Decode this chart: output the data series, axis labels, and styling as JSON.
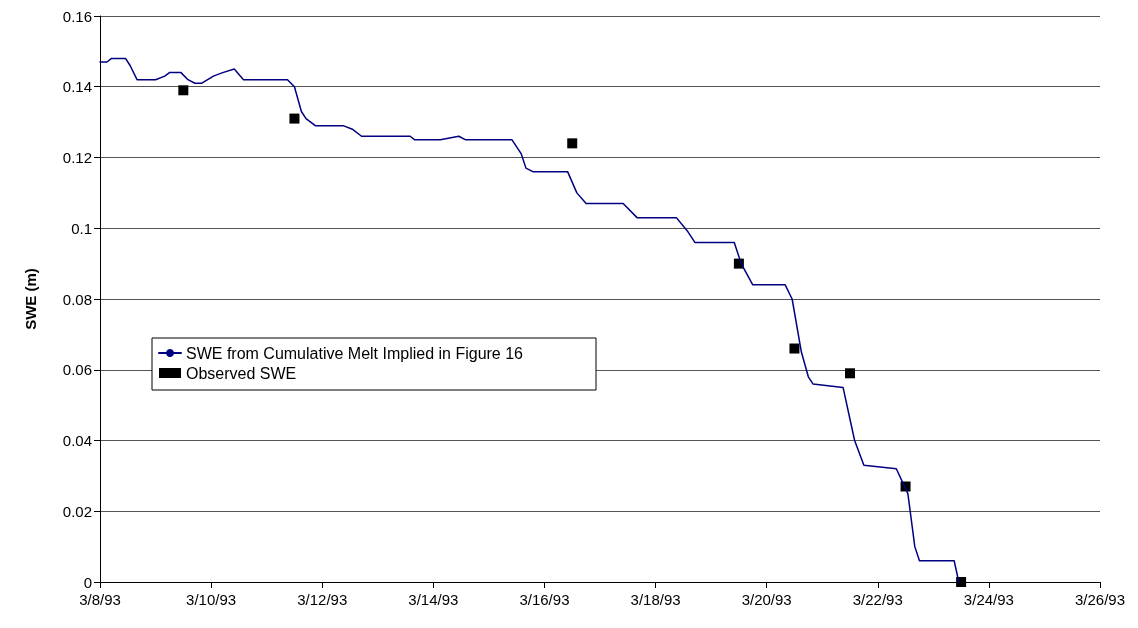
{
  "chart_data": {
    "type": "line",
    "ylabel": "SWE (m)",
    "xlim": [
      "1993-03-08",
      "1993-03-26"
    ],
    "xticks": [
      {
        "value": "1993-03-08",
        "label": "3/8/93"
      },
      {
        "value": "1993-03-10",
        "label": "3/10/93"
      },
      {
        "value": "1993-03-12",
        "label": "3/12/93"
      },
      {
        "value": "1993-03-14",
        "label": "3/14/93"
      },
      {
        "value": "1993-03-16",
        "label": "3/16/93"
      },
      {
        "value": "1993-03-18",
        "label": "3/18/93"
      },
      {
        "value": "1993-03-20",
        "label": "3/20/93"
      },
      {
        "value": "1993-03-22",
        "label": "3/22/93"
      },
      {
        "value": "1993-03-24",
        "label": "3/24/93"
      },
      {
        "value": "1993-03-26",
        "label": "3/26/93"
      }
    ],
    "ylim": [
      0,
      0.16
    ],
    "yticks": [
      0,
      0.02,
      0.04,
      0.06,
      0.08,
      0.1,
      0.12,
      0.14,
      0.16
    ],
    "grid": "y",
    "legend": "left",
    "series": [
      {
        "name": "SWE from Cumulative Melt Implied in Figure 16",
        "color": "#000080",
        "marker": "none",
        "line_style": "solid",
        "x": [
          "1993-03-08T00:00",
          "1993-03-08T03:00",
          "1993-03-08T05:00",
          "1993-03-08T08:00",
          "1993-03-08T11:00",
          "1993-03-08T13:00",
          "1993-03-08T16:00",
          "1993-03-09T00:00",
          "1993-03-09T04:00",
          "1993-03-09T06:00",
          "1993-03-09T11:00",
          "1993-03-09T14:00",
          "1993-03-09T17:00",
          "1993-03-09T20:00",
          "1993-03-10T01:00",
          "1993-03-10T05:00",
          "1993-03-10T10:00",
          "1993-03-10T14:00",
          "1993-03-11T09:00",
          "1993-03-11T12:00",
          "1993-03-11T15:00",
          "1993-03-11T17:00",
          "1993-03-11T21:00",
          "1993-03-12T09:00",
          "1993-03-12T13:00",
          "1993-03-12T17:00",
          "1993-03-13T14:00",
          "1993-03-13T16:00",
          "1993-03-14T03:00",
          "1993-03-14T11:00",
          "1993-03-14T14:00",
          "1993-03-15T10:00",
          "1993-03-15T14:00",
          "1993-03-15T16:00",
          "1993-03-15T19:00",
          "1993-03-16T10:00",
          "1993-03-16T14:00",
          "1993-03-16T18:00",
          "1993-03-17T10:00",
          "1993-03-17T16:00",
          "1993-03-18T09:00",
          "1993-03-18T14:00",
          "1993-03-18T17:00",
          "1993-03-19T10:00",
          "1993-03-19T13:00",
          "1993-03-19T18:00",
          "1993-03-20T08:00",
          "1993-03-20T11:00",
          "1993-03-20T15:00",
          "1993-03-20T18:00",
          "1993-03-20T20:00",
          "1993-03-21T09:00",
          "1993-03-21T14:00",
          "1993-03-21T18:00",
          "1993-03-22T08:00",
          "1993-03-22T13:00",
          "1993-03-22T16:00",
          "1993-03-22T18:00",
          "1993-03-23T09:00",
          "1993-03-23T11:00"
        ],
        "values": [
          0.147,
          0.147,
          0.148,
          0.148,
          0.148,
          0.146,
          0.142,
          0.142,
          0.143,
          0.144,
          0.144,
          0.142,
          0.141,
          0.141,
          0.143,
          0.144,
          0.145,
          0.142,
          0.142,
          0.14,
          0.133,
          0.131,
          0.129,
          0.129,
          0.128,
          0.126,
          0.126,
          0.125,
          0.125,
          0.126,
          0.125,
          0.125,
          0.121,
          0.117,
          0.116,
          0.116,
          0.11,
          0.107,
          0.107,
          0.103,
          0.103,
          0.099,
          0.096,
          0.096,
          0.09,
          0.084,
          0.084,
          0.08,
          0.065,
          0.058,
          0.056,
          0.055,
          0.04,
          0.033,
          0.032,
          0.025,
          0.01,
          0.006,
          0.006,
          0
        ]
      },
      {
        "name": "Observed SWE",
        "type": "scatter",
        "color": "#000000",
        "marker": "square",
        "x": [
          "1993-03-09T12:00",
          "1993-03-11T12:00",
          "1993-03-16T12:00",
          "1993-03-19T12:00",
          "1993-03-20T12:00",
          "1993-03-21T12:00",
          "1993-03-22T12:00",
          "1993-03-23T12:00"
        ],
        "values": [
          0.139,
          0.131,
          0.124,
          0.09,
          0.066,
          0.059,
          0.027,
          0
        ]
      }
    ]
  }
}
